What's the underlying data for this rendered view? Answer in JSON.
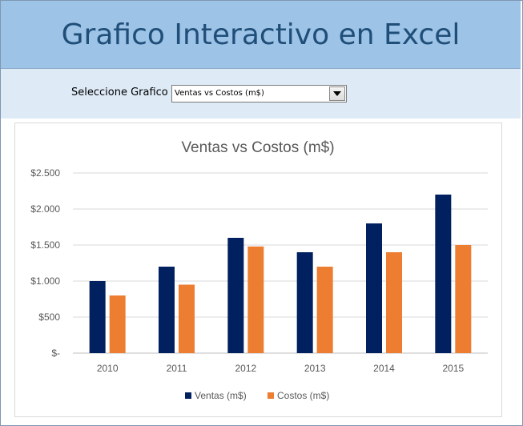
{
  "page": {
    "title": "Grafico Interactivo en Excel"
  },
  "selector": {
    "label": "Seleccione Grafico",
    "selected": "Ventas vs Costos (m$)",
    "dropdown_icon": "triangle-down-icon"
  },
  "colors": {
    "title_band": "#9dc3e6",
    "selector_band": "#deebf7",
    "title_text": "#1f4e79",
    "ventas": "#002060",
    "costos": "#ed7d31"
  },
  "chart_data": {
    "type": "bar",
    "title": "Ventas vs Costos (m$)",
    "categories": [
      "2010",
      "2011",
      "2012",
      "2013",
      "2014",
      "2015"
    ],
    "series": [
      {
        "name": "Ventas (m$)",
        "values": [
          1000,
          1200,
          1600,
          1400,
          1800,
          2200
        ],
        "color": "#002060"
      },
      {
        "name": "Costos (m$)",
        "values": [
          800,
          950,
          1480,
          1200,
          1400,
          1500
        ],
        "color": "#ed7d31"
      }
    ],
    "ylim": [
      0,
      2500
    ],
    "yticks": [
      0,
      500,
      1000,
      1500,
      2000,
      2500
    ],
    "ytick_labels": [
      "$-",
      "$500",
      "$1.000",
      "$1.500",
      "$2.000",
      "$2.500"
    ],
    "grid": true,
    "legend": "bottom"
  }
}
